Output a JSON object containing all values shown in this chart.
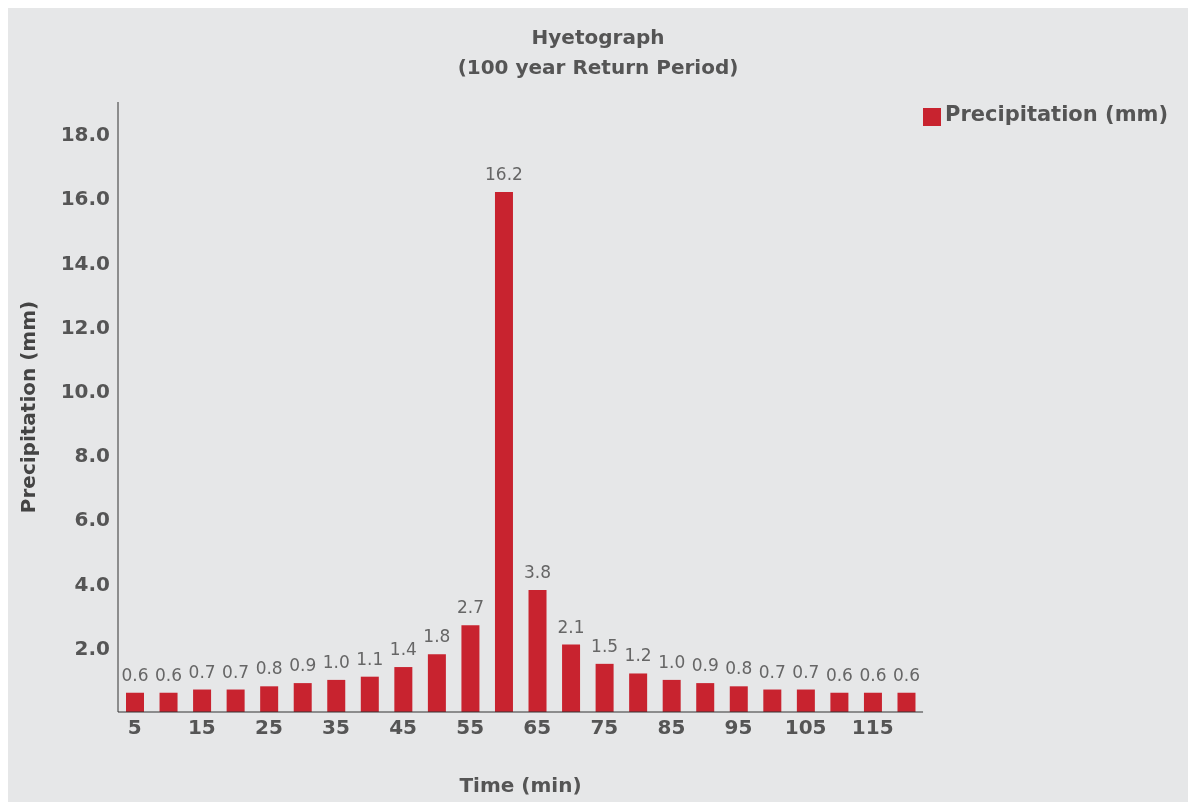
{
  "chart_data": {
    "type": "bar",
    "title": "Hyetograph",
    "subtitle": "(100 year Return Period)",
    "xlabel": "Time (min)",
    "ylabel": "Precipitation (mm)",
    "categories": [
      "5",
      null,
      "15",
      null,
      "25",
      null,
      "35",
      null,
      "45",
      null,
      "55",
      null,
      "65",
      null,
      "75",
      null,
      "85",
      null,
      "95",
      null,
      "105",
      null,
      "115",
      null
    ],
    "series": [
      {
        "name": "Precipitation (mm)",
        "color": "#c8232f",
        "values": [
          0.6,
          0.6,
          0.7,
          0.7,
          0.8,
          0.9,
          1.0,
          1.1,
          1.4,
          1.8,
          2.7,
          16.2,
          3.8,
          2.1,
          1.5,
          1.2,
          1.0,
          0.9,
          0.8,
          0.7,
          0.7,
          0.6,
          0.6,
          0.6
        ],
        "value_labels": [
          "0.6",
          "0.6",
          "0.7",
          "0.7",
          "0.8",
          "0.9",
          "1.0",
          "1.1",
          "1.4",
          "1.8",
          "2.7",
          "16.2",
          "3.8",
          "2.1",
          "1.5",
          "1.2",
          "1.0",
          "0.9",
          "0.8",
          "0.7",
          "0.7",
          "0.6",
          "0.6",
          "0.6"
        ]
      }
    ],
    "ylim": [
      0,
      19
    ],
    "yticks": [
      {
        "value": 2,
        "label": "2.0"
      },
      {
        "value": 4,
        "label": "4.0"
      },
      {
        "value": 6,
        "label": "6.0"
      },
      {
        "value": 8,
        "label": "8.0"
      },
      {
        "value": 10,
        "label": "10.0"
      },
      {
        "value": 12,
        "label": "12.0"
      },
      {
        "value": 14,
        "label": "14.0"
      },
      {
        "value": 16,
        "label": "16.0"
      },
      {
        "value": 18,
        "label": "18.0"
      }
    ],
    "grid": false,
    "legend": "top right"
  }
}
